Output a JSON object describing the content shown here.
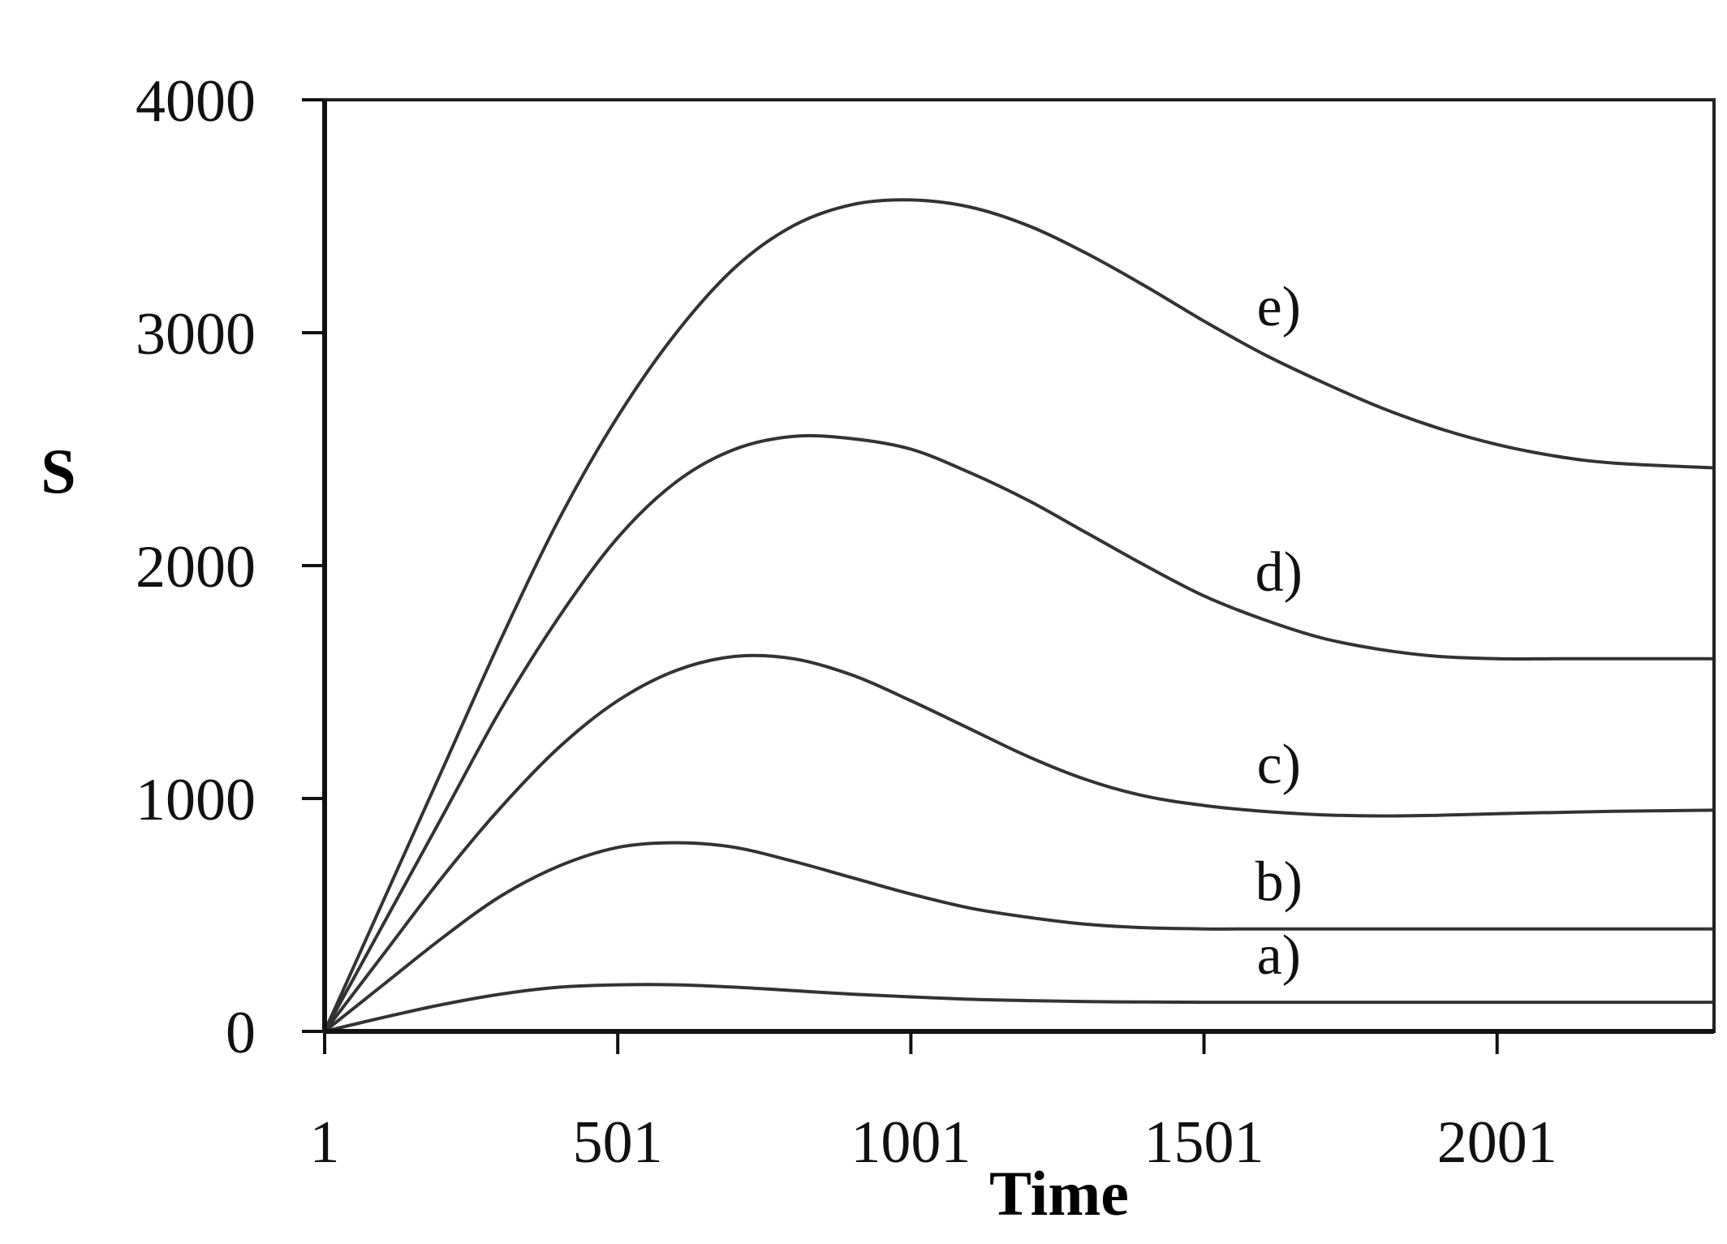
{
  "chart_data": {
    "type": "line",
    "title": "",
    "xlabel": "Time",
    "ylabel": "S",
    "xlim": [
      1,
      2371
    ],
    "ylim": [
      0,
      4000
    ],
    "x_ticks": [
      1,
      501,
      1001,
      1501,
      2001
    ],
    "x_tick_labels": [
      "1",
      "501",
      "1001",
      "1501",
      "2001"
    ],
    "y_ticks": [
      0,
      1000,
      2000,
      3000,
      4000
    ],
    "y_tick_labels": [
      "0",
      "1000",
      "2000",
      "3000",
      "4000"
    ],
    "grid": false,
    "line_color": "#333333",
    "series": [
      {
        "name": "a)",
        "x": [
          1,
          101,
          201,
          301,
          401,
          501,
          601,
          701,
          801,
          901,
          1001,
          1101,
          1201,
          1301,
          1401,
          1501,
          1601,
          1701,
          1801,
          1901,
          2001,
          2101,
          2201,
          2371
        ],
        "y": [
          0,
          60,
          115,
          160,
          190,
          200,
          200,
          190,
          175,
          160,
          148,
          138,
          132,
          128,
          126,
          125,
          125,
          125,
          125,
          125,
          125,
          125,
          125,
          125
        ]
      },
      {
        "name": "b)",
        "x": [
          1,
          101,
          201,
          301,
          401,
          501,
          601,
          701,
          801,
          901,
          1001,
          1101,
          1201,
          1301,
          1401,
          1501,
          1601,
          1701,
          1801,
          1901,
          2001,
          2101,
          2201,
          2371
        ],
        "y": [
          0,
          200,
          400,
          580,
          710,
          790,
          810,
          790,
          730,
          660,
          590,
          530,
          490,
          460,
          445,
          440,
          440,
          440,
          440,
          440,
          440,
          440,
          440,
          440
        ]
      },
      {
        "name": "c)",
        "x": [
          1,
          101,
          201,
          301,
          401,
          501,
          601,
          701,
          801,
          901,
          1001,
          1101,
          1201,
          1301,
          1401,
          1501,
          1601,
          1701,
          1801,
          1901,
          2001,
          2101,
          2201,
          2371
        ],
        "y": [
          0,
          330,
          660,
          960,
          1220,
          1420,
          1550,
          1610,
          1600,
          1530,
          1420,
          1300,
          1180,
          1080,
          1010,
          970,
          945,
          930,
          925,
          928,
          935,
          940,
          945,
          950
        ]
      },
      {
        "name": "d)",
        "x": [
          1,
          101,
          201,
          301,
          401,
          501,
          601,
          701,
          801,
          901,
          1001,
          1101,
          1201,
          1301,
          1401,
          1501,
          1601,
          1701,
          1801,
          1901,
          2001,
          2101,
          2201,
          2371
        ],
        "y": [
          0,
          460,
          920,
          1380,
          1780,
          2120,
          2360,
          2500,
          2555,
          2545,
          2500,
          2400,
          2280,
          2140,
          2000,
          1870,
          1770,
          1690,
          1640,
          1610,
          1600,
          1600,
          1600,
          1600
        ]
      },
      {
        "name": "e)",
        "x": [
          1,
          101,
          201,
          301,
          401,
          501,
          601,
          701,
          801,
          901,
          1001,
          1101,
          1201,
          1301,
          1401,
          1501,
          1601,
          1701,
          1801,
          1901,
          2001,
          2101,
          2201,
          2371
        ],
        "y": [
          0,
          560,
          1120,
          1680,
          2200,
          2640,
          3000,
          3280,
          3460,
          3550,
          3570,
          3540,
          3460,
          3340,
          3200,
          3050,
          2910,
          2790,
          2680,
          2590,
          2520,
          2470,
          2440,
          2420
        ]
      }
    ]
  }
}
